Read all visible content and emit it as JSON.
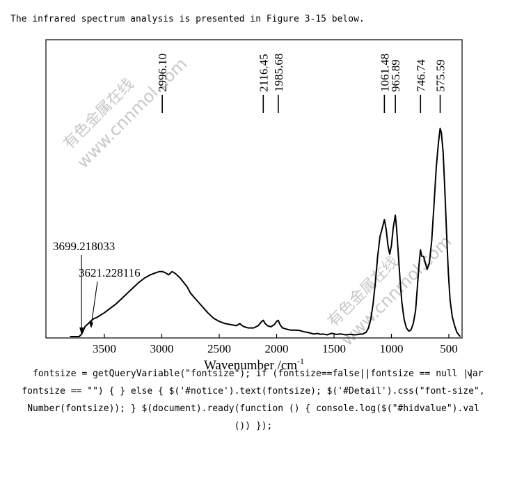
{
  "intro_text": "The infrared spectrum analysis is presented in Figure 3-15 below.",
  "chart_data": {
    "type": "line",
    "title": "",
    "xlabel": "Wavenumber /cm",
    "xlabel_superscript": "-1",
    "ylabel": "",
    "xlim": [
      4000,
      400
    ],
    "x_reversed": true,
    "grid": false,
    "x_ticks": [
      3500,
      3000,
      2500,
      2000,
      1500,
      1000,
      500
    ],
    "x_tick_labels": [
      "3500",
      "3000",
      "2500",
      "2000",
      "1500",
      "1000",
      "500"
    ],
    "peak_labels": [
      {
        "x": 2996.1,
        "label": "2996.10"
      },
      {
        "x": 2116.45,
        "label": "2116.45"
      },
      {
        "x": 1985.68,
        "label": "1985.68"
      },
      {
        "x": 1061.48,
        "label": "1061.48"
      },
      {
        "x": 965.89,
        "label": "965.89"
      },
      {
        "x": 746.74,
        "label": "746.74"
      },
      {
        "x": 575.59,
        "label": "575.59"
      }
    ],
    "annotations": [
      {
        "x": 3699.218033,
        "label": "3699.218033"
      },
      {
        "x": 3621.228116,
        "label": "3621.228116"
      }
    ],
    "series": [
      {
        "x": [
          3800,
          3720,
          3700,
          3690,
          3670,
          3650,
          3621,
          3600,
          3560,
          3500,
          3450,
          3400,
          3350,
          3300,
          3250,
          3200,
          3150,
          3100,
          3050,
          3020,
          2996,
          2970,
          2940,
          2910,
          2880,
          2860,
          2840,
          2810,
          2780,
          2750,
          2700,
          2650,
          2600,
          2550,
          2500,
          2450,
          2400,
          2350,
          2320,
          2300,
          2280,
          2250,
          2200,
          2160,
          2130,
          2116,
          2100,
          2080,
          2050,
          2020,
          2000,
          1986,
          1970,
          1950,
          1920,
          1880,
          1840,
          1800,
          1760,
          1720,
          1700,
          1680,
          1640,
          1620,
          1600,
          1560,
          1520,
          1480,
          1440,
          1400,
          1360,
          1320,
          1280,
          1250,
          1220,
          1200,
          1180,
          1160,
          1140,
          1120,
          1100,
          1080,
          1061,
          1045,
          1030,
          1015,
          1000,
          985,
          966,
          955,
          940,
          925,
          910,
          890,
          870,
          850,
          830,
          810,
          790,
          775,
          760,
          747,
          735,
          720,
          705,
          690,
          670,
          650,
          630,
          610,
          590,
          576,
          565,
          550,
          535,
          520,
          505,
          490,
          470,
          450,
          430,
          410,
          400
        ],
        "y": [
          0.0,
          0.0,
          0.01,
          0.02,
          0.045,
          0.055,
          0.07,
          0.08,
          0.09,
          0.11,
          0.13,
          0.15,
          0.175,
          0.2,
          0.225,
          0.25,
          0.27,
          0.285,
          0.295,
          0.3,
          0.3,
          0.295,
          0.285,
          0.3,
          0.29,
          0.28,
          0.27,
          0.25,
          0.23,
          0.2,
          0.17,
          0.14,
          0.11,
          0.085,
          0.07,
          0.06,
          0.055,
          0.05,
          0.06,
          0.05,
          0.045,
          0.04,
          0.04,
          0.05,
          0.07,
          0.075,
          0.06,
          0.05,
          0.045,
          0.055,
          0.07,
          0.075,
          0.055,
          0.04,
          0.035,
          0.03,
          0.03,
          0.028,
          0.022,
          0.018,
          0.015,
          0.012,
          0.014,
          0.01,
          0.012,
          0.008,
          0.015,
          0.01,
          0.012,
          0.008,
          0.01,
          0.008,
          0.01,
          0.012,
          0.02,
          0.04,
          0.08,
          0.15,
          0.25,
          0.37,
          0.46,
          0.5,
          0.54,
          0.49,
          0.42,
          0.38,
          0.42,
          0.5,
          0.56,
          0.5,
          0.38,
          0.26,
          0.16,
          0.08,
          0.04,
          0.025,
          0.03,
          0.06,
          0.12,
          0.22,
          0.33,
          0.4,
          0.37,
          0.37,
          0.34,
          0.31,
          0.34,
          0.44,
          0.6,
          0.78,
          0.9,
          0.96,
          0.94,
          0.85,
          0.68,
          0.48,
          0.3,
          0.17,
          0.09,
          0.05,
          0.02,
          0.005,
          0.0
        ]
      }
    ]
  },
  "watermarks": [
    {
      "text1": "有色金属在线",
      "text2": "www.cnnmol.com"
    },
    {
      "text1": "有色金属在线",
      "text2": "www.cnnmol.com"
    }
  ],
  "code_lines": {
    "var": "var",
    "line1": "fontsize = getQueryVariable(\"fontsize\"); if (fontsize==false||fontsize == null ||",
    "line2": "fontsize == \"\") { } else { $('#notice').text(fontsize); $('#Detail').css(\"font-size\",",
    "line3": "Number(fontsize)); } $(document).ready(function () { console.log($(\"#hidvalue\").val",
    "line4": "()) });"
  }
}
